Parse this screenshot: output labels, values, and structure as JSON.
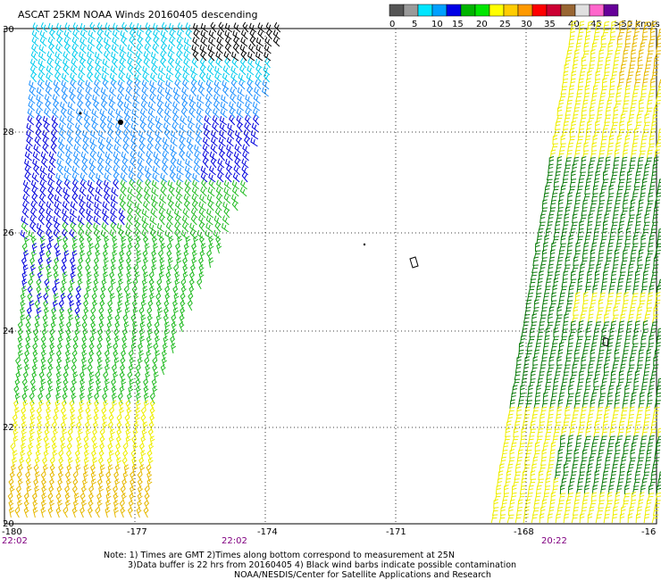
{
  "title": "ASCAT 25KM NOAA Winds 20160405 descending",
  "legend": {
    "colors": [
      "#555555",
      "#9a9a9a",
      "#00e6ff",
      "#00a0ff",
      "#0000e6",
      "#00b400",
      "#00e600",
      "#ffff00",
      "#ffcc00",
      "#ff9900",
      "#ff0000",
      "#cc0033",
      "#996633",
      "#e0e0e0",
      "#ff66cc",
      "#660099"
    ],
    "labels": [
      "0",
      "5",
      "10",
      "15",
      "20",
      "25",
      "30",
      "35",
      "40",
      "45",
      ">50 knots"
    ]
  },
  "lat_labels": [
    "30",
    "28",
    "26",
    "24",
    "22",
    "20"
  ],
  "lon_labels": [
    "-180",
    "-177",
    "-174",
    "-171",
    "-168",
    "-16"
  ],
  "time_labels": [
    "22:02",
    "22:02",
    "20:22"
  ],
  "notes": [
    "Note: 1) Times are GMT 2)Times along bottom correspond to measurement at 25N",
    "3)Data buffer is 22 hrs from 20160405 4) Black wind barbs indicate possible contamination",
    "NOAA/NESDIS/Center for Satellite Applications and Research"
  ],
  "colors": {
    "cyan": "#00ccee",
    "light_blue": "#1e90ff",
    "blue": "#0000dd",
    "green": "#22bb22",
    "dark_green": "#0a7a0a",
    "yellow": "#eeee00",
    "orange": "#e6b800",
    "black": "#000000",
    "time_label": "#800080"
  }
}
